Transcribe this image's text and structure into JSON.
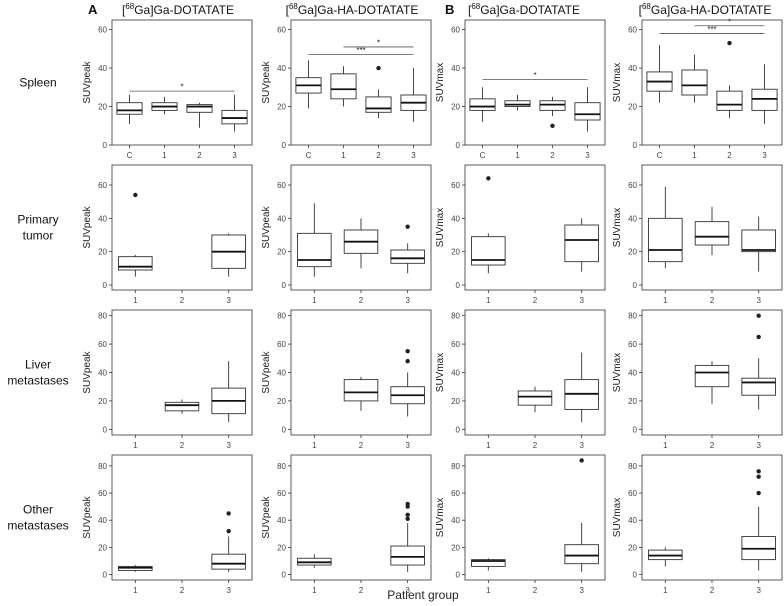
{
  "figure": {
    "panel_labels": [
      "A",
      "B"
    ],
    "column_headers": [
      {
        "pre": "[",
        "sup": "68",
        "post": "Ga]Ga-DOTATATE"
      },
      {
        "pre": "[",
        "sup": "68",
        "post": "Ga]Ga-HA-DOTATATE"
      },
      {
        "pre": "[",
        "sup": "68",
        "post": "Ga]Ga-DOTATATE"
      },
      {
        "pre": "[",
        "sup": "68",
        "post": "Ga]Ga-HA-DOTATATE"
      }
    ],
    "row_labels": [
      [
        "Spleen"
      ],
      [
        "Primary",
        "tumor"
      ],
      [
        "Liver",
        "metastases"
      ],
      [
        "Other",
        "metastases"
      ]
    ],
    "xlabel": "Patient group"
  },
  "chart_data": [
    {
      "type": "box",
      "row": 0,
      "col": 0,
      "ylabel": "SUVpeak",
      "ylim": [
        0,
        65
      ],
      "yticks": [
        0,
        20,
        40,
        60
      ],
      "categories": [
        "C",
        "1",
        "2",
        "3"
      ],
      "boxes": [
        {
          "min": 11,
          "q1": 16,
          "median": 18,
          "q3": 22,
          "max": 26,
          "outliers": []
        },
        {
          "min": 16,
          "q1": 18,
          "median": 20,
          "q3": 22,
          "max": 25,
          "outliers": []
        },
        {
          "min": 9,
          "q1": 17,
          "median": 20,
          "q3": 21,
          "max": 22,
          "outliers": []
        },
        {
          "min": 7,
          "q1": 11,
          "median": 14,
          "q3": 18,
          "max": 26,
          "outliers": []
        }
      ],
      "sig": [
        {
          "from": 0,
          "to": 3,
          "label": "*",
          "y": 28
        }
      ]
    },
    {
      "type": "box",
      "row": 0,
      "col": 1,
      "ylabel": "SUVpeak",
      "ylim": [
        0,
        65
      ],
      "yticks": [
        0,
        20,
        40,
        60
      ],
      "categories": [
        "C",
        "1",
        "2",
        "3"
      ],
      "boxes": [
        {
          "min": 19,
          "q1": 27,
          "median": 31,
          "q3": 35,
          "max": 44,
          "outliers": []
        },
        {
          "min": 20,
          "q1": 24,
          "median": 29,
          "q3": 37,
          "max": 41,
          "outliers": []
        },
        {
          "min": 14,
          "q1": 17,
          "median": 19,
          "q3": 25,
          "max": 29,
          "outliers": [
            40
          ]
        },
        {
          "min": 12,
          "q1": 18,
          "median": 22,
          "q3": 26,
          "max": 40,
          "outliers": []
        }
      ],
      "sig": [
        {
          "from": 1,
          "to": 3,
          "label": "*",
          "y": 51
        },
        {
          "from": 0,
          "to": 3,
          "label": "***",
          "y": 47
        }
      ]
    },
    {
      "type": "box",
      "row": 0,
      "col": 2,
      "ylabel": "SUVmax",
      "ylim": [
        0,
        65
      ],
      "yticks": [
        0,
        20,
        40,
        60
      ],
      "categories": [
        "C",
        "1",
        "2",
        "3"
      ],
      "boxes": [
        {
          "min": 12,
          "q1": 18,
          "median": 20,
          "q3": 24,
          "max": 30,
          "outliers": []
        },
        {
          "min": 18,
          "q1": 20,
          "median": 21,
          "q3": 23,
          "max": 26,
          "outliers": []
        },
        {
          "min": 15,
          "q1": 18,
          "median": 21,
          "q3": 23,
          "max": 25,
          "outliers": [
            10
          ]
        },
        {
          "min": 7,
          "q1": 13,
          "median": 16,
          "q3": 22,
          "max": 30,
          "outliers": []
        }
      ],
      "sig": [
        {
          "from": 0,
          "to": 3,
          "label": "*",
          "y": 34
        }
      ]
    },
    {
      "type": "box",
      "row": 0,
      "col": 3,
      "ylabel": "SUVmax",
      "ylim": [
        0,
        65
      ],
      "yticks": [
        0,
        20,
        40,
        60
      ],
      "categories": [
        "C",
        "1",
        "2",
        "3"
      ],
      "boxes": [
        {
          "min": 22,
          "q1": 28,
          "median": 33,
          "q3": 38,
          "max": 52,
          "outliers": []
        },
        {
          "min": 22,
          "q1": 26,
          "median": 31,
          "q3": 39,
          "max": 47,
          "outliers": []
        },
        {
          "min": 14,
          "q1": 18,
          "median": 21,
          "q3": 28,
          "max": 31,
          "outliers": [
            53
          ]
        },
        {
          "min": 11,
          "q1": 18,
          "median": 24,
          "q3": 29,
          "max": 42,
          "outliers": []
        }
      ],
      "sig": [
        {
          "from": 1,
          "to": 3,
          "label": "*",
          "y": 62
        },
        {
          "from": 0,
          "to": 3,
          "label": "***",
          "y": 58
        }
      ]
    },
    {
      "type": "box",
      "row": 1,
      "col": 0,
      "ylabel": "SUVpeak",
      "ylim": [
        -3,
        72
      ],
      "yticks": [
        0,
        20,
        40,
        60
      ],
      "categories": [
        "1",
        "2",
        "3"
      ],
      "boxes": [
        {
          "min": 5,
          "q1": 9,
          "median": 11,
          "q3": 17,
          "max": 18,
          "outliers": [
            54
          ]
        },
        null,
        {
          "min": 5,
          "q1": 10,
          "median": 20,
          "q3": 30,
          "max": 31,
          "outliers": []
        }
      ],
      "sig": []
    },
    {
      "type": "box",
      "row": 1,
      "col": 1,
      "ylabel": "SUVpeak",
      "ylim": [
        -3,
        72
      ],
      "yticks": [
        0,
        20,
        40,
        60
      ],
      "categories": [
        "1",
        "2",
        "3"
      ],
      "boxes": [
        {
          "min": 5,
          "q1": 11,
          "median": 15,
          "q3": 31,
          "max": 49,
          "outliers": []
        },
        {
          "min": 10,
          "q1": 19,
          "median": 26,
          "q3": 33,
          "max": 40,
          "outliers": []
        },
        {
          "min": 7,
          "q1": 13,
          "median": 16,
          "q3": 21,
          "max": 25,
          "outliers": [
            35
          ]
        }
      ],
      "sig": []
    },
    {
      "type": "box",
      "row": 1,
      "col": 2,
      "ylabel": "SUVmax",
      "ylim": [
        -3,
        72
      ],
      "yticks": [
        0,
        20,
        40,
        60
      ],
      "categories": [
        "1",
        "2",
        "3"
      ],
      "boxes": [
        {
          "min": 7,
          "q1": 12,
          "median": 15,
          "q3": 29,
          "max": 31,
          "outliers": [
            64
          ]
        },
        null,
        {
          "min": 8,
          "q1": 14,
          "median": 27,
          "q3": 36,
          "max": 40,
          "outliers": []
        }
      ],
      "sig": []
    },
    {
      "type": "box",
      "row": 1,
      "col": 3,
      "ylabel": "SUVmax",
      "ylim": [
        -3,
        72
      ],
      "yticks": [
        0,
        20,
        40,
        60
      ],
      "categories": [
        "1",
        "2",
        "3"
      ],
      "boxes": [
        {
          "min": 10,
          "q1": 14,
          "median": 21,
          "q3": 40,
          "max": 59,
          "outliers": []
        },
        {
          "min": 18,
          "q1": 24,
          "median": 29,
          "q3": 38,
          "max": 47,
          "outliers": []
        },
        {
          "min": 8,
          "q1": 20,
          "median": 21,
          "q3": 33,
          "max": 41,
          "outliers": []
        }
      ],
      "sig": []
    },
    {
      "type": "box",
      "row": 2,
      "col": 0,
      "ylabel": "SUVpeak",
      "ylim": [
        -4,
        84
      ],
      "yticks": [
        0,
        20,
        40,
        60,
        80
      ],
      "categories": [
        "1",
        "2",
        "3"
      ],
      "boxes": [
        null,
        {
          "min": 11,
          "q1": 13,
          "median": 17,
          "q3": 19,
          "max": 21,
          "outliers": []
        },
        {
          "min": 5,
          "q1": 11,
          "median": 20,
          "q3": 29,
          "max": 48,
          "outliers": []
        }
      ],
      "sig": []
    },
    {
      "type": "box",
      "row": 2,
      "col": 1,
      "ylabel": "SUVpeak",
      "ylim": [
        -4,
        84
      ],
      "yticks": [
        0,
        20,
        40,
        60,
        80
      ],
      "categories": [
        "1",
        "2",
        "3"
      ],
      "boxes": [
        null,
        {
          "min": 13,
          "q1": 20,
          "median": 26,
          "q3": 35,
          "max": 37,
          "outliers": []
        },
        {
          "min": 9,
          "q1": 18,
          "median": 24,
          "q3": 30,
          "max": 40,
          "outliers": [
            48,
            55
          ]
        }
      ],
      "sig": []
    },
    {
      "type": "box",
      "row": 2,
      "col": 2,
      "ylabel": "SUVmax",
      "ylim": [
        -4,
        84
      ],
      "yticks": [
        0,
        20,
        40,
        60,
        80
      ],
      "categories": [
        "1",
        "2",
        "3"
      ],
      "boxes": [
        null,
        {
          "min": 12,
          "q1": 17,
          "median": 23,
          "q3": 27,
          "max": 30,
          "outliers": []
        },
        {
          "min": 5,
          "q1": 14,
          "median": 25,
          "q3": 35,
          "max": 54,
          "outliers": []
        }
      ],
      "sig": []
    },
    {
      "type": "box",
      "row": 2,
      "col": 3,
      "ylabel": "SUVmax",
      "ylim": [
        -4,
        84
      ],
      "yticks": [
        0,
        20,
        40,
        60,
        80
      ],
      "categories": [
        "1",
        "2",
        "3"
      ],
      "boxes": [
        null,
        {
          "min": 18,
          "q1": 30,
          "median": 40,
          "q3": 45,
          "max": 48,
          "outliers": []
        },
        {
          "min": 14,
          "q1": 24,
          "median": 33,
          "q3": 36,
          "max": 50,
          "outliers": [
            65,
            80
          ]
        }
      ],
      "sig": []
    },
    {
      "type": "box",
      "row": 3,
      "col": 0,
      "ylabel": "SUVpeak",
      "ylim": [
        -4,
        88
      ],
      "yticks": [
        0,
        20,
        40,
        60,
        80
      ],
      "categories": [
        "1",
        "2",
        "3"
      ],
      "boxes": [
        {
          "min": 2,
          "q1": 3,
          "median": 5,
          "q3": 6,
          "max": 7,
          "outliers": []
        },
        null,
        {
          "min": 2,
          "q1": 4,
          "median": 8,
          "q3": 15,
          "max": 28,
          "outliers": [
            32,
            45
          ]
        }
      ],
      "sig": []
    },
    {
      "type": "box",
      "row": 3,
      "col": 1,
      "ylabel": "SUVpeak",
      "ylim": [
        -4,
        88
      ],
      "yticks": [
        0,
        20,
        40,
        60,
        80
      ],
      "categories": [
        "1",
        "2",
        "3"
      ],
      "boxes": [
        {
          "min": 5,
          "q1": 7,
          "median": 9,
          "q3": 12,
          "max": 15,
          "outliers": []
        },
        null,
        {
          "min": 2,
          "q1": 7,
          "median": 13,
          "q3": 21,
          "max": 38,
          "outliers": [
            41,
            44,
            50,
            52
          ]
        }
      ],
      "sig": []
    },
    {
      "type": "box",
      "row": 3,
      "col": 2,
      "ylabel": "SUVmax",
      "ylim": [
        -4,
        88
      ],
      "yticks": [
        0,
        20,
        40,
        60,
        80
      ],
      "categories": [
        "1",
        "2",
        "3"
      ],
      "boxes": [
        {
          "min": 3,
          "q1": 6,
          "median": 10,
          "q3": 11,
          "max": 12,
          "outliers": []
        },
        null,
        {
          "min": 2,
          "q1": 8,
          "median": 14,
          "q3": 22,
          "max": 38,
          "outliers": [
            84
          ]
        }
      ],
      "sig": []
    },
    {
      "type": "box",
      "row": 3,
      "col": 3,
      "ylabel": "SUVmax",
      "ylim": [
        -4,
        88
      ],
      "yticks": [
        0,
        20,
        40,
        60,
        80
      ],
      "categories": [
        "1",
        "2",
        "3"
      ],
      "boxes": [
        {
          "min": 6,
          "q1": 11,
          "median": 14,
          "q3": 18,
          "max": 20,
          "outliers": []
        },
        null,
        {
          "min": 3,
          "q1": 11,
          "median": 19,
          "q3": 28,
          "max": 50,
          "outliers": [
            60,
            72,
            76
          ]
        }
      ],
      "sig": []
    }
  ]
}
